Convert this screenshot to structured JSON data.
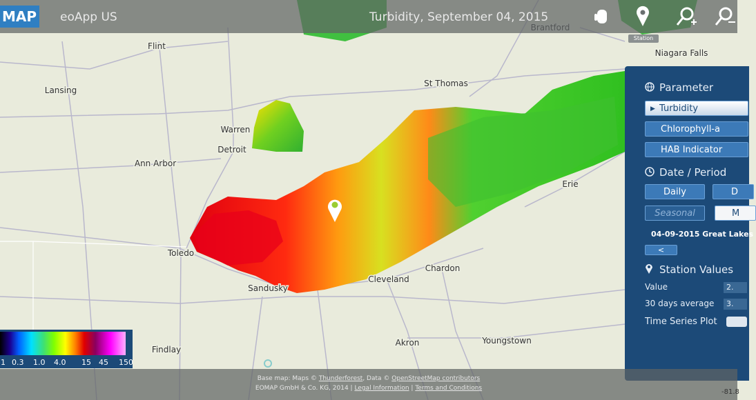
{
  "header": {
    "logo": "MAP",
    "app_name": "eoApp US",
    "title": "Turbidity, September 04, 2015",
    "tool_tooltip": "Station"
  },
  "map_labels": [
    "Flint",
    "Lansing",
    "Warren",
    "Detroit",
    "Ann Arbor",
    "Toledo",
    "Sandusky",
    "Findlay",
    "Akron",
    "Cleveland",
    "Chardon",
    "Youngstown",
    "Erie",
    "St Thomas",
    "Brantford",
    "Niagara Falls"
  ],
  "legend": {
    "labels": [
      "1",
      "0.3",
      "1.0",
      "4.0",
      "15",
      "45",
      "150"
    ]
  },
  "panel": {
    "parameter_heading": "Parameter",
    "parameters": [
      "Turbidity",
      "Chlorophyll-a",
      "HAB Indicator"
    ],
    "date_heading": "Date / Period",
    "period_buttons": [
      "Daily",
      "D",
      "Seasonal",
      "M"
    ],
    "date_label": "04-09-2015 Great Lakes",
    "back_button": "<",
    "station_heading": "Station Values",
    "value_label": "Value",
    "value": "2.",
    "average_label": "30 days average",
    "average": "3.",
    "time_series_label": "Time Series Plot"
  },
  "footer": {
    "base_map": "Base map: Maps © ",
    "thunderforest": "Thunderforest",
    "data_prefix": ", Data © ",
    "osm": "OpenStreetMap contributors",
    "company": "EOMAP GmbH & Co. KG, 2014 | ",
    "legal": "Legal Information",
    "separator": " | ",
    "terms": "Terms and Conditions"
  },
  "coordinate": "-81.8"
}
